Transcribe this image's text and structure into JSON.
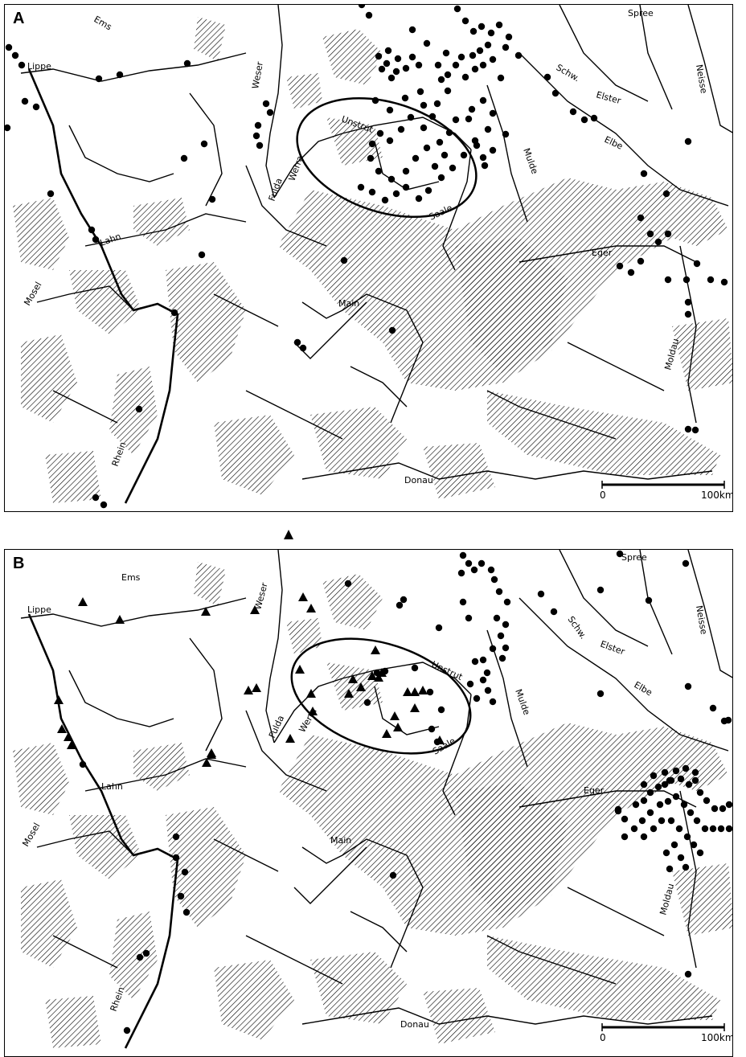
{
  "panels": [
    {
      "label": "A",
      "rivers": [
        "Ems",
        "Lippe",
        "Weser",
        "Spree",
        "Neisse",
        "Schw.",
        "Elster",
        "Elbe",
        "Unstrut",
        "Saale",
        "Fulda",
        "Werra",
        "Mulde",
        "Lahn",
        "Eger",
        "Mosel",
        "Main",
        "Moldau",
        "Rhein",
        "Donau"
      ],
      "scale": {
        "start": "0",
        "end": "100km"
      }
    },
    {
      "label": "B",
      "rivers": [
        "Ems",
        "Lippe",
        "Weser",
        "Spree",
        "Neisse",
        "Schw.",
        "Elster",
        "Elbe",
        "Unstrut",
        "Saale",
        "Fulda",
        "Werra",
        "Mulde",
        "Lahn",
        "Eger",
        "Mosel",
        "Main",
        "Moldau",
        "Rhein",
        "Donau"
      ],
      "scale": {
        "start": "0",
        "end": "100km"
      }
    }
  ],
  "legend_symbols": {
    "circle": "find-site-circle",
    "triangle": "find-site-triangle"
  },
  "colors": {
    "ink": "#000000",
    "paper": "#ffffff"
  }
}
